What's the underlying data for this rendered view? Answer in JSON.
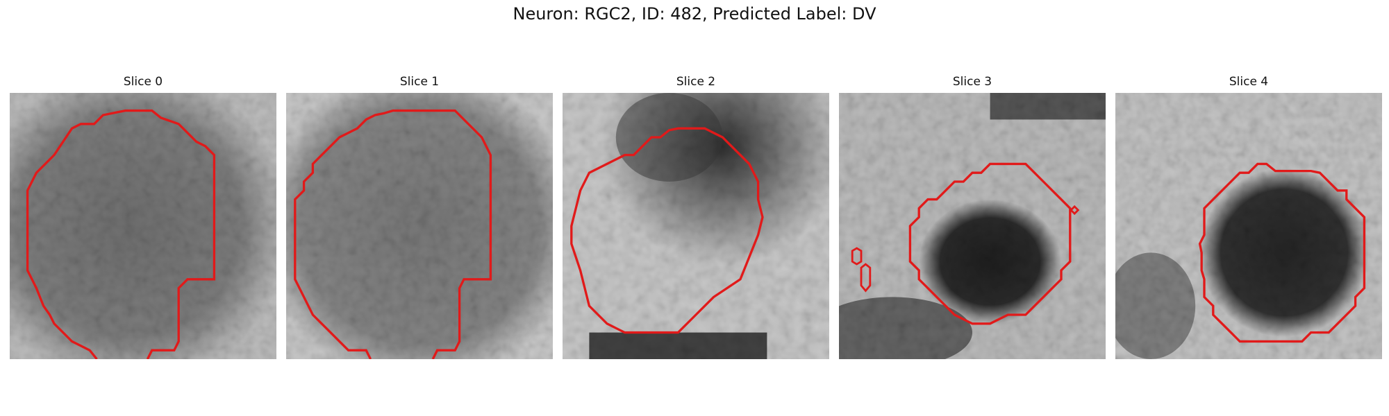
{
  "figure": {
    "title": "Neuron: RGC2, ID: 482, Predicted Label: DV",
    "contour_color": "#e11a1a"
  },
  "panels": [
    {
      "title": "Slice 0"
    },
    {
      "title": "Slice 1"
    },
    {
      "title": "Slice 2"
    },
    {
      "title": "Slice 3"
    },
    {
      "title": "Slice 4"
    }
  ]
}
